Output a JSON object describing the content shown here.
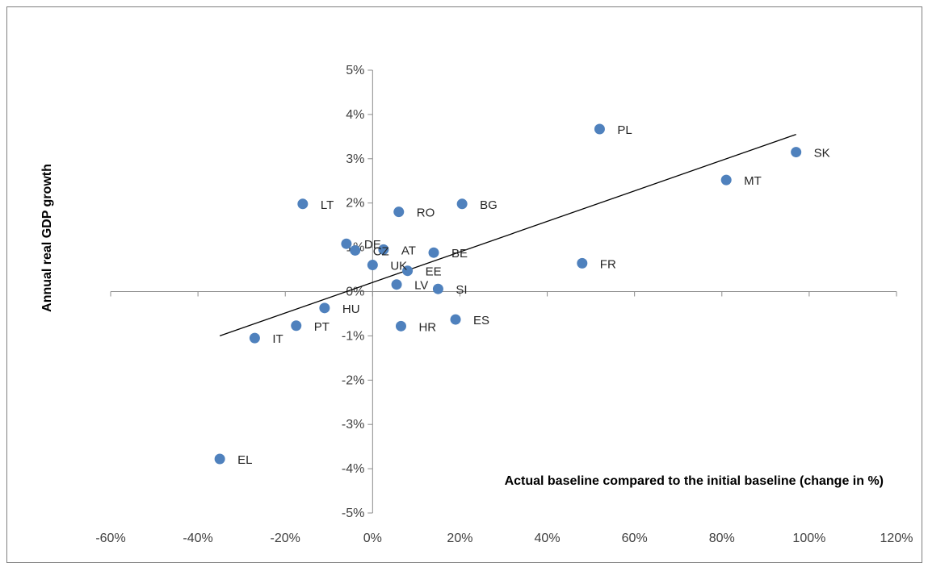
{
  "chart_data": {
    "type": "scatter",
    "title": "",
    "xlabel": "Actual baseline compared to the initial baseline (change in %)",
    "ylabel": "Annual real GDP growth",
    "xlim": [
      -0.6,
      1.2
    ],
    "ylim": [
      -0.05,
      0.05
    ],
    "x_ticks": [
      -0.6,
      -0.4,
      -0.2,
      0,
      0.2,
      0.4,
      0.6,
      0.8,
      1.0,
      1.2
    ],
    "y_ticks": [
      0.05,
      0.04,
      0.03,
      0.02,
      0.01,
      0,
      -0.01,
      -0.02,
      -0.03,
      -0.04,
      -0.05
    ],
    "x_tick_labels": [
      "-60%",
      "-40%",
      "-20%",
      "0%",
      "20%",
      "40%",
      "60%",
      "80%",
      "100%",
      "120%"
    ],
    "y_tick_labels": [
      "5%",
      "4%",
      "3%",
      "2%",
      "1%",
      "0%",
      "-1%",
      "-2%",
      "-3%",
      "-4%",
      "-5%"
    ],
    "marker_color": "#4f81bd",
    "trendline_color": "#000000",
    "grid": false,
    "legend": "none",
    "points": [
      {
        "label": "PL",
        "x": 0.52,
        "y": 0.0367
      },
      {
        "label": "SK",
        "x": 0.97,
        "y": 0.0315
      },
      {
        "label": "MT",
        "x": 0.81,
        "y": 0.0252
      },
      {
        "label": "LT",
        "x": -0.16,
        "y": 0.0198
      },
      {
        "label": "RO",
        "x": 0.06,
        "y": 0.018
      },
      {
        "label": "BG",
        "x": 0.205,
        "y": 0.0198
      },
      {
        "label": "DE",
        "x": -0.06,
        "y": 0.0108
      },
      {
        "label": "CZ",
        "x": -0.04,
        "y": 0.0093
      },
      {
        "label": "AT",
        "x": 0.025,
        "y": 0.0095
      },
      {
        "label": "BE",
        "x": 0.14,
        "y": 0.0088
      },
      {
        "label": "FR",
        "x": 0.48,
        "y": 0.0064
      },
      {
        "label": "UK",
        "x": 0.0,
        "y": 0.006
      },
      {
        "label": "EE",
        "x": 0.08,
        "y": 0.0047
      },
      {
        "label": "LV",
        "x": 0.055,
        "y": 0.0016
      },
      {
        "label": "SI",
        "x": 0.15,
        "y": 0.0006
      },
      {
        "label": "HU",
        "x": -0.11,
        "y": -0.0037
      },
      {
        "label": "ES",
        "x": 0.19,
        "y": -0.0063
      },
      {
        "label": "PT",
        "x": -0.175,
        "y": -0.0077
      },
      {
        "label": "HR",
        "x": 0.065,
        "y": -0.0078
      },
      {
        "label": "IT",
        "x": -0.27,
        "y": -0.0105
      },
      {
        "label": "EL",
        "x": -0.35,
        "y": -0.0378
      }
    ],
    "trendline": {
      "x": [
        -0.35,
        0.97
      ],
      "y": [
        -0.01,
        0.0355
      ]
    }
  }
}
